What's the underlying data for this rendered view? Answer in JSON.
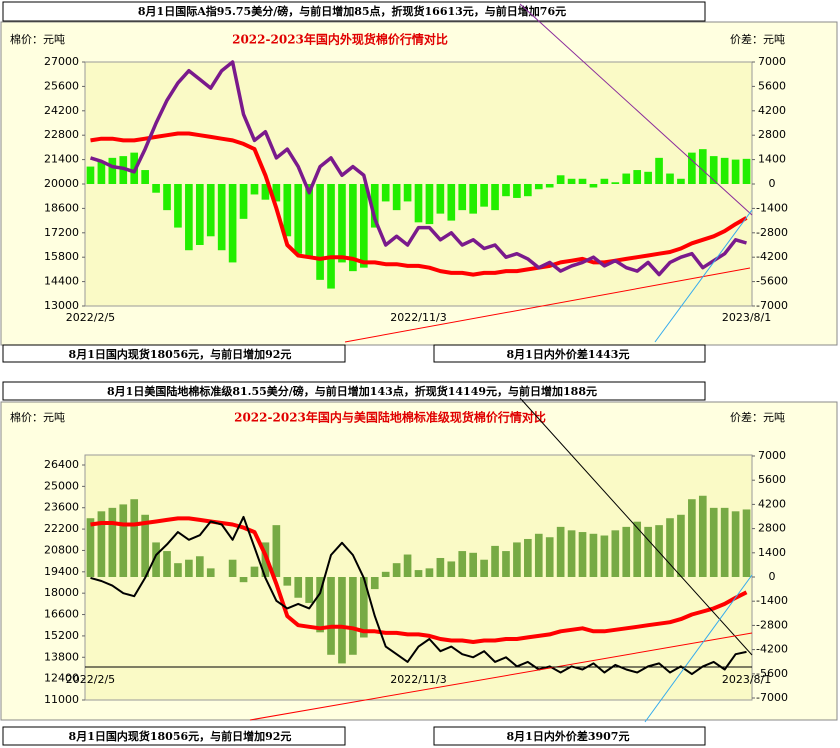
{
  "chart_data": [
    {
      "type": "combo",
      "title": "2022-2023年国内外现货棉价行情对比",
      "y_label": "棉价：元吨",
      "y2_label": "价差：元吨",
      "header": "8月1日国际A指95.75美分/磅，与前日增加85点，折现货16613元，与前日增加76元",
      "note_left": "8月1日国内现货18056元，与前日增加92元",
      "note_right": "8月1日内外价差1443元",
      "categories": [
        "2022/2/5",
        null,
        null,
        null,
        null,
        null,
        null,
        null,
        null,
        null,
        null,
        null,
        null,
        null,
        null,
        null,
        null,
        null,
        null,
        null,
        null,
        null,
        null,
        null,
        null,
        null,
        null,
        null,
        null,
        null,
        "2022/11/3",
        null,
        null,
        null,
        null,
        null,
        null,
        null,
        null,
        null,
        null,
        null,
        null,
        null,
        null,
        null,
        null,
        null,
        null,
        null,
        null,
        null,
        null,
        null,
        null,
        null,
        null,
        null,
        null,
        null,
        "2023/8/1"
      ],
      "ylim": [
        13000,
        27000
      ],
      "yticks": [
        27000,
        25600,
        24200,
        22800,
        21400,
        20000,
        18600,
        17200,
        15800,
        14400,
        13000
      ],
      "y2lim": [
        -7000,
        7000
      ],
      "y2ticks": [
        7000,
        5600,
        4200,
        2800,
        1400,
        0,
        -1400,
        -2800,
        -4200,
        -5600,
        -7000
      ],
      "grid": false,
      "series": [
        {
          "kind": "bar",
          "axis": "y2",
          "color": "#22ee00",
          "values": [
            1000,
            1300,
            1500,
            1600,
            1800,
            800,
            -500,
            -1500,
            -2500,
            -3800,
            -3500,
            -3000,
            -3800,
            -4500,
            -2000,
            -600,
            -900,
            -1000,
            -3000,
            -4000,
            -4200,
            -5500,
            -6000,
            -4500,
            -5000,
            -4800,
            -2500,
            -1000,
            -1500,
            -1000,
            -2200,
            -2300,
            -1700,
            -2100,
            -1500,
            -1700,
            -1300,
            -1500,
            -700,
            -800,
            -700,
            -300,
            -200,
            500,
            300,
            300,
            -200,
            300,
            100,
            600,
            800,
            700,
            1500,
            600,
            300,
            1800,
            2000,
            1600,
            1500,
            1400,
            1443
          ]
        },
        {
          "kind": "line",
          "axis": "y",
          "color": "#ff0000",
          "width": 4,
          "values": [
            22500,
            22600,
            22600,
            22500,
            22500,
            22600,
            22700,
            22800,
            22900,
            22900,
            22800,
            22700,
            22600,
            22500,
            22300,
            22000,
            20500,
            18600,
            16500,
            15900,
            15800,
            15700,
            15800,
            15800,
            15700,
            15500,
            15500,
            15400,
            15400,
            15300,
            15300,
            15200,
            15000,
            14900,
            14900,
            14800,
            14900,
            14900,
            15000,
            15000,
            15100,
            15200,
            15300,
            15500,
            15600,
            15700,
            15500,
            15500,
            15600,
            15700,
            15800,
            15900,
            16000,
            16100,
            16300,
            16600,
            16800,
            17000,
            17300,
            17700,
            18056
          ]
        },
        {
          "kind": "line",
          "axis": "y",
          "color": "#7a1a8c",
          "width": 3.5,
          "values": [
            21500,
            21300,
            21000,
            20900,
            20700,
            22000,
            23500,
            24800,
            25800,
            26500,
            26000,
            25500,
            26500,
            27000,
            24000,
            22500,
            23000,
            21500,
            22000,
            21000,
            19500,
            21000,
            21500,
            20500,
            21000,
            20500,
            18000,
            16500,
            17000,
            16500,
            17500,
            17500,
            16800,
            17200,
            16500,
            16800,
            16300,
            16500,
            15800,
            16000,
            15700,
            15200,
            15500,
            15000,
            15300,
            15500,
            15800,
            15300,
            15600,
            15200,
            15000,
            15500,
            14800,
            15500,
            15800,
            16000,
            15200,
            15600,
            16000,
            16800,
            16613
          ]
        }
      ]
    },
    {
      "type": "combo",
      "title": "2022-2023年国内与美国陆地棉标准级现货棉价行情对比",
      "y_label": "棉价：元吨",
      "y2_label": "价差：元吨",
      "header": "8月1日美国陆地棉标准级81.55美分/磅，与前日增加143点，折现货14149元，与前日增加188元",
      "note_left": "8月1日国内现货18056元，与前日增加92元",
      "note_right": "8月1日内外价差3907元",
      "categories": [
        "2022/2/5",
        null,
        null,
        null,
        null,
        null,
        null,
        null,
        null,
        null,
        null,
        null,
        null,
        null,
        null,
        null,
        null,
        null,
        null,
        null,
        null,
        null,
        null,
        null,
        null,
        null,
        null,
        null,
        null,
        null,
        "2022/11/3",
        null,
        null,
        null,
        null,
        null,
        null,
        null,
        null,
        null,
        null,
        null,
        null,
        null,
        null,
        null,
        null,
        null,
        null,
        null,
        null,
        null,
        null,
        null,
        null,
        null,
        null,
        null,
        null,
        null,
        "2023/8/1"
      ],
      "ylim": [
        11000,
        26400
      ],
      "yticks": [
        26400,
        25000,
        23600,
        22200,
        20800,
        19400,
        18000,
        16600,
        15200,
        13800,
        12400,
        11000
      ],
      "y2lim": [
        -7000,
        7000
      ],
      "y2ticks": [
        7000,
        5600,
        4200,
        2800,
        1400,
        0,
        -1400,
        -2800,
        -4200,
        -5600,
        -7000
      ],
      "grid": false,
      "series": [
        {
          "kind": "bar",
          "axis": "y2",
          "color": "#77aa44",
          "values": [
            3400,
            3800,
            4000,
            4200,
            4500,
            3600,
            2000,
            1500,
            800,
            1000,
            1200,
            500,
            0,
            1000,
            -300,
            600,
            2000,
            3000,
            -500,
            -1200,
            -1500,
            -3200,
            -4500,
            -5000,
            -4500,
            -3500,
            -700,
            300,
            800,
            1300,
            400,
            500,
            1100,
            900,
            1500,
            1400,
            1000,
            1800,
            1500,
            2000,
            2200,
            2500,
            2300,
            2900,
            2700,
            2600,
            2500,
            2400,
            2700,
            2900,
            3200,
            2900,
            3000,
            3400,
            3600,
            4500,
            4700,
            4000,
            4000,
            3800,
            3907
          ]
        },
        {
          "kind": "line",
          "axis": "y",
          "color": "#ff0000",
          "width": 4,
          "values": [
            22500,
            22600,
            22600,
            22500,
            22500,
            22600,
            22700,
            22800,
            22900,
            22900,
            22800,
            22700,
            22600,
            22500,
            22300,
            22000,
            20500,
            18600,
            16500,
            15900,
            15800,
            15700,
            15800,
            15800,
            15700,
            15500,
            15500,
            15400,
            15400,
            15300,
            15300,
            15200,
            15000,
            14900,
            14900,
            14800,
            14900,
            14900,
            15000,
            15000,
            15100,
            15200,
            15300,
            15500,
            15600,
            15700,
            15500,
            15500,
            15600,
            15700,
            15800,
            15900,
            16000,
            16100,
            16300,
            16600,
            16800,
            17000,
            17300,
            17700,
            18056
          ]
        },
        {
          "kind": "line",
          "axis": "y",
          "color": "#000000",
          "width": 2,
          "values": [
            19000,
            18800,
            18500,
            18000,
            17800,
            19000,
            20500,
            21200,
            22000,
            21500,
            21800,
            22700,
            22500,
            21500,
            23000,
            21000,
            19000,
            17500,
            17000,
            17300,
            17000,
            18000,
            20500,
            21300,
            20500,
            19000,
            16500,
            14500,
            14000,
            13500,
            14500,
            15000,
            14200,
            14500,
            14000,
            13800,
            14200,
            13500,
            13800,
            13200,
            13500,
            13000,
            13200,
            12800,
            13200,
            13000,
            13400,
            12800,
            13300,
            13000,
            12800,
            13200,
            13400,
            12800,
            13200,
            12700,
            13200,
            13500,
            13000,
            14000,
            14149
          ]
        }
      ]
    }
  ]
}
